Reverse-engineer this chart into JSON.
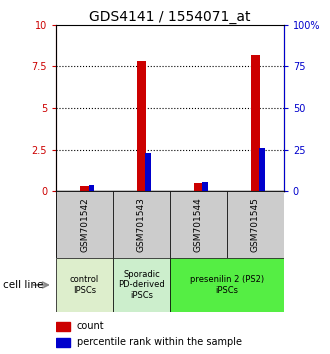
{
  "title": "GDS4141 / 1554071_at",
  "samples": [
    "GSM701542",
    "GSM701543",
    "GSM701544",
    "GSM701545"
  ],
  "count_values": [
    0.3,
    7.8,
    0.5,
    8.2
  ],
  "percentile_values": [
    4.0,
    23.0,
    5.5,
    26.0
  ],
  "ylim_left": [
    0,
    10
  ],
  "ylim_right": [
    0,
    100
  ],
  "yticks_left": [
    0,
    2.5,
    5,
    7.5,
    10
  ],
  "yticks_right": [
    0,
    25,
    50,
    75,
    100
  ],
  "ytick_labels_left": [
    "0",
    "2.5",
    "5",
    "7.5",
    "10"
  ],
  "ytick_labels_right": [
    "0",
    "25",
    "50",
    "75",
    "100%"
  ],
  "cell_groups": [
    {
      "label": "control\nIPSCs",
      "start": 0,
      "end": 1,
      "color": "#ddeecc"
    },
    {
      "label": "Sporadic\nPD-derived\niPSCs",
      "start": 1,
      "end": 2,
      "color": "#cceecc"
    },
    {
      "label": "presenilin 2 (PS2)\niPSCs",
      "start": 2,
      "end": 4,
      "color": "#55ee44"
    }
  ],
  "count_color": "#cc0000",
  "percentile_color": "#0000cc",
  "count_bar_width": 0.15,
  "percentile_bar_width": 0.1,
  "sample_box_color": "#cccccc",
  "background_color": "#ffffff",
  "title_fontsize": 10,
  "tick_fontsize": 7,
  "label_fontsize": 7
}
